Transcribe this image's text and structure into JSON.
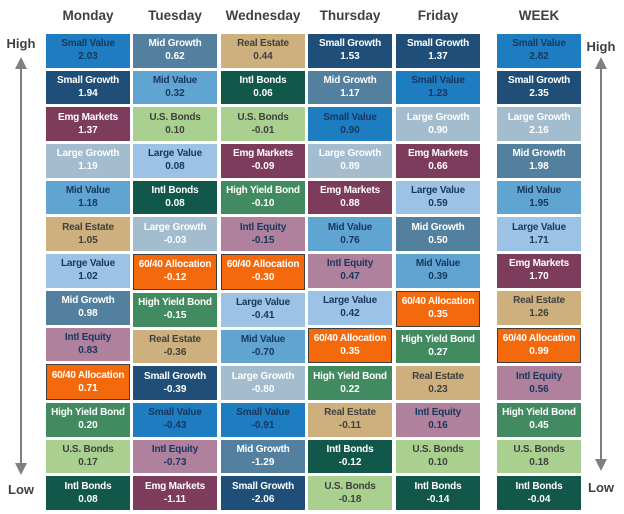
{
  "axis": {
    "high": "High",
    "low": "Low"
  },
  "palette": {
    "Small Value": {
      "bg": "#1E7DC1",
      "fg": "#17375D"
    },
    "Small Growth": {
      "bg": "#1F4E79",
      "fg": "#FFFFFF"
    },
    "Emg Markets": {
      "bg": "#7D3C5B",
      "fg": "#FFFFFF"
    },
    "Large Growth": {
      "bg": "#A3BCCE",
      "fg": "#FFFFFF"
    },
    "Mid Value": {
      "bg": "#60A4D2",
      "fg": "#17375D"
    },
    "Real Estate": {
      "bg": "#CDB07E",
      "fg": "#404040"
    },
    "Large Value": {
      "bg": "#9CC3E6",
      "fg": "#17375D"
    },
    "Mid Growth": {
      "bg": "#54809F",
      "fg": "#FFFFFF"
    },
    "Intl Equity": {
      "bg": "#B0819D",
      "fg": "#17375D"
    },
    "60/40 Allocation": {
      "bg": "#F4690B",
      "fg": "#FFFFFF",
      "border": "#3F3F3F"
    },
    "High Yield Bond": {
      "bg": "#428A60",
      "fg": "#FFFFFF"
    },
    "U.S. Bonds": {
      "bg": "#A9D08E",
      "fg": "#404040"
    },
    "Intl Bonds": {
      "bg": "#11574A",
      "fg": "#FFFFFF"
    }
  },
  "chart_data": {
    "type": "table",
    "columns": [
      "Monday",
      "Tuesday",
      "Wednesday",
      "Thursday",
      "Friday",
      "WEEK"
    ],
    "series": [
      {
        "key": "monday",
        "name": "Monday",
        "cells": [
          [
            "Small Value",
            2.03
          ],
          [
            "Small Growth",
            1.94
          ],
          [
            "Emg Markets",
            1.37
          ],
          [
            "Large Growth",
            1.19
          ],
          [
            "Mid Value",
            1.18
          ],
          [
            "Real Estate",
            1.05
          ],
          [
            "Large Value",
            1.02
          ],
          [
            "Mid Growth",
            0.98
          ],
          [
            "Intl Equity",
            0.83
          ],
          [
            "60/40 Allocation",
            0.71
          ],
          [
            "High Yield Bond",
            0.2
          ],
          [
            "U.S. Bonds",
            0.17
          ],
          [
            "Intl Bonds",
            0.08
          ]
        ]
      },
      {
        "key": "tuesday",
        "name": "Tuesday",
        "cells": [
          [
            "Mid Growth",
            0.62
          ],
          [
            "Mid Value",
            0.32
          ],
          [
            "U.S. Bonds",
            0.1
          ],
          [
            "Large Value",
            0.08
          ],
          [
            "Intl Bonds",
            0.08
          ],
          [
            "Large Growth",
            -0.03
          ],
          [
            "60/40 Allocation",
            -0.12
          ],
          [
            "High Yield Bond",
            -0.15
          ],
          [
            "Real Estate",
            -0.36
          ],
          [
            "Small Growth",
            -0.39
          ],
          [
            "Small Value",
            -0.43
          ],
          [
            "Intl Equity",
            -0.73
          ],
          [
            "Emg Markets",
            -1.11
          ]
        ]
      },
      {
        "key": "wednesday",
        "name": "Wednesday",
        "cells": [
          [
            "Real Estate",
            0.44
          ],
          [
            "Intl Bonds",
            0.06
          ],
          [
            "U.S. Bonds",
            -0.01
          ],
          [
            "Emg Markets",
            -0.09
          ],
          [
            "High Yield Bond",
            -0.1
          ],
          [
            "Intl Equity",
            -0.15
          ],
          [
            "60/40 Allocation",
            -0.3
          ],
          [
            "Large Value",
            -0.41
          ],
          [
            "Mid Value",
            -0.7
          ],
          [
            "Large Growth",
            -0.8
          ],
          [
            "Small Value",
            -0.91
          ],
          [
            "Mid Growth",
            -1.29
          ],
          [
            "Small Growth",
            -2.06
          ]
        ]
      },
      {
        "key": "thursday",
        "name": "Thursday",
        "cells": [
          [
            "Small Growth",
            1.53
          ],
          [
            "Mid Growth",
            1.17
          ],
          [
            "Small Value",
            0.9
          ],
          [
            "Large Growth",
            0.89
          ],
          [
            "Emg Markets",
            0.88
          ],
          [
            "Mid Value",
            0.76
          ],
          [
            "Intl Equity",
            0.47
          ],
          [
            "Large Value",
            0.42
          ],
          [
            "60/40 Allocation",
            0.35
          ],
          [
            "High Yield Bond",
            0.22
          ],
          [
            "Real Estate",
            -0.11
          ],
          [
            "Intl Bonds",
            -0.12
          ],
          [
            "U.S. Bonds",
            -0.18
          ]
        ]
      },
      {
        "key": "friday",
        "name": "Friday",
        "cells": [
          [
            "Small Growth",
            1.37
          ],
          [
            "Small Value",
            1.23
          ],
          [
            "Large Growth",
            0.9
          ],
          [
            "Emg Markets",
            0.66
          ],
          [
            "Large Value",
            0.59
          ],
          [
            "Mid Growth",
            0.5
          ],
          [
            "Mid Value",
            0.39
          ],
          [
            "60/40 Allocation",
            0.35
          ],
          [
            "High Yield Bond",
            0.27
          ],
          [
            "Real Estate",
            0.23
          ],
          [
            "Intl Equity",
            0.16
          ],
          [
            "U.S. Bonds",
            0.1
          ],
          [
            "Intl Bonds",
            -0.14
          ]
        ]
      },
      {
        "key": "week",
        "name": "WEEK",
        "cells": [
          [
            "Small Value",
            2.82
          ],
          [
            "Small Growth",
            2.35
          ],
          [
            "Large Growth",
            2.16
          ],
          [
            "Mid Growth",
            1.98
          ],
          [
            "Mid Value",
            1.95
          ],
          [
            "Large Value",
            1.71
          ],
          [
            "Emg Markets",
            1.7
          ],
          [
            "Real Estate",
            1.26
          ],
          [
            "60/40 Allocation",
            0.99
          ],
          [
            "Intl Equity",
            0.56
          ],
          [
            "High Yield Bond",
            0.45
          ],
          [
            "U.S. Bonds",
            0.18
          ],
          [
            "Intl Bonds",
            -0.04
          ]
        ]
      }
    ]
  }
}
